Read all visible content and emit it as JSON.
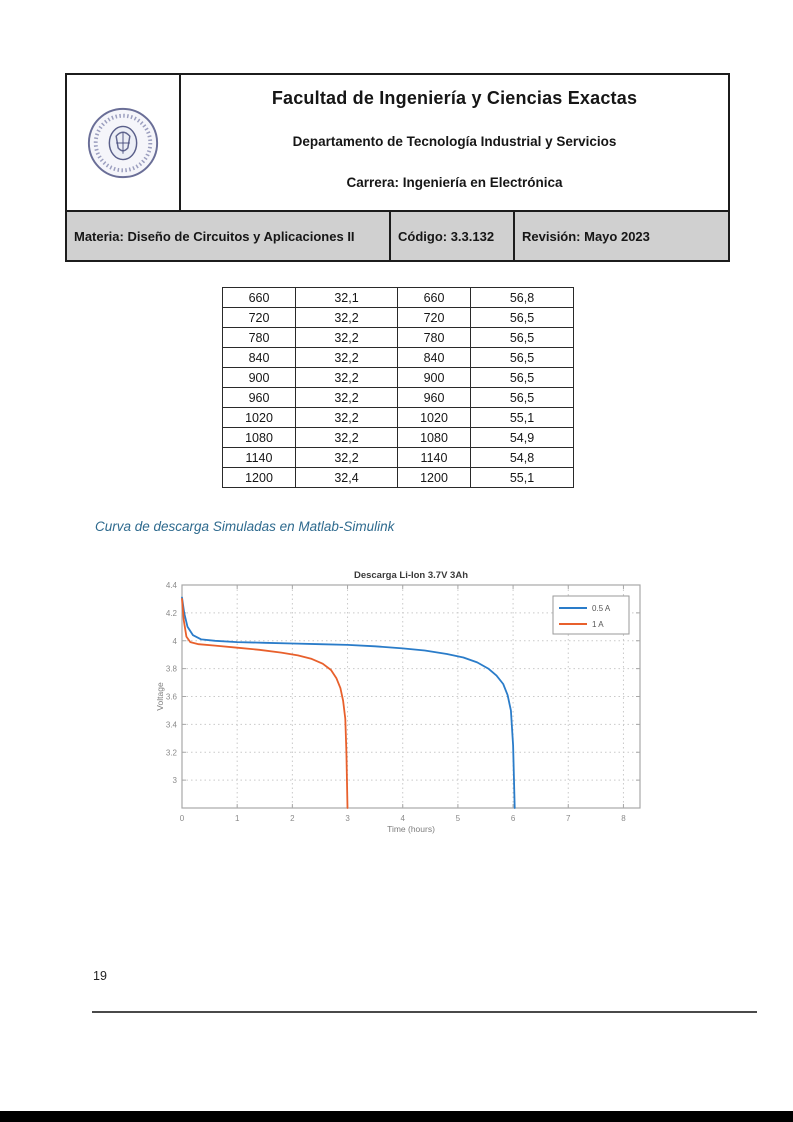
{
  "header": {
    "title": "Facultad de Ingeniería y Ciencias Exactas",
    "department": "Departamento de Tecnología Industrial y Servicios",
    "career": "Carrera: Ingeniería en Electrónica",
    "materia": "Materia: Diseño de Circuitos y Aplicaciones II",
    "codigo": "Código: 3.3.132",
    "revision": "Revisión: Mayo 2023",
    "logo": "uade-circular-seal"
  },
  "data_table": {
    "rows": [
      [
        "660",
        "32,1",
        "660",
        "56,8"
      ],
      [
        "720",
        "32,2",
        "720",
        "56,5"
      ],
      [
        "780",
        "32,2",
        "780",
        "56,5"
      ],
      [
        "840",
        "32,2",
        "840",
        "56,5"
      ],
      [
        "900",
        "32,2",
        "900",
        "56,5"
      ],
      [
        "960",
        "32,2",
        "960",
        "56,5"
      ],
      [
        "1020",
        "32,2",
        "1020",
        "55,1"
      ],
      [
        "1080",
        "32,2",
        "1080",
        "54,9"
      ],
      [
        "1140",
        "32,2",
        "1140",
        "54,8"
      ],
      [
        "1200",
        "32,4",
        "1200",
        "55,1"
      ]
    ]
  },
  "caption": {
    "text": "Curva de descarga Simuladas en Matlab-Simulink",
    "color": "#2e6a8e"
  },
  "chart_data": {
    "type": "line",
    "title": "Descarga Li-Ion 3.7V 3Ah",
    "xlabel": "Time (hours)",
    "ylabel": "Voltage",
    "xlim": [
      0,
      8.3
    ],
    "ylim": [
      2.8,
      4.4
    ],
    "xticks": [
      0,
      1,
      2,
      3,
      4,
      5,
      6,
      7,
      8
    ],
    "yticks": [
      3,
      3.2,
      3.4,
      3.6,
      3.8,
      4,
      4.2,
      4.4
    ],
    "grid": true,
    "legend_position": "top-right",
    "axis_color": "#a8a8a8",
    "grid_color": "#c9c9c9",
    "tick_label_color": "#8a8a8a",
    "series": [
      {
        "name": "0.5 A",
        "color": "#2a7cc9",
        "x": [
          0,
          0.04,
          0.1,
          0.2,
          0.35,
          0.6,
          1,
          1.5,
          2,
          2.5,
          3,
          3.5,
          4,
          4.4,
          4.8,
          5.1,
          5.35,
          5.55,
          5.7,
          5.82,
          5.9,
          5.96,
          6.0,
          6.03
        ],
        "y": [
          4.31,
          4.2,
          4.1,
          4.04,
          4.01,
          4.0,
          3.99,
          3.985,
          3.98,
          3.975,
          3.97,
          3.96,
          3.945,
          3.93,
          3.905,
          3.88,
          3.845,
          3.8,
          3.75,
          3.69,
          3.61,
          3.5,
          3.25,
          2.8
        ]
      },
      {
        "name": "1 A",
        "color": "#e8602c",
        "x": [
          0,
          0.03,
          0.08,
          0.15,
          0.3,
          0.6,
          1,
          1.4,
          1.8,
          2.1,
          2.35,
          2.55,
          2.7,
          2.8,
          2.87,
          2.92,
          2.96,
          2.98,
          3.0
        ],
        "y": [
          4.3,
          4.15,
          4.03,
          3.99,
          3.975,
          3.965,
          3.95,
          3.935,
          3.915,
          3.895,
          3.87,
          3.835,
          3.79,
          3.73,
          3.66,
          3.57,
          3.44,
          3.2,
          2.8
        ]
      }
    ]
  },
  "footer": {
    "page_number": "19"
  }
}
